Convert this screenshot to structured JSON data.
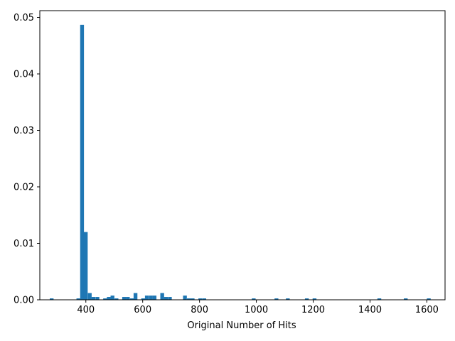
{
  "chart_data": {
    "type": "bar",
    "xlabel": "Original Number of Hits",
    "ylabel": "",
    "title": "",
    "xlim": [
      238,
      1664
    ],
    "ylim": [
      0,
      0.0512
    ],
    "bin_width": 13.4,
    "x_ticks": [
      {
        "value": 400,
        "label": "400"
      },
      {
        "value": 600,
        "label": "600"
      },
      {
        "value": 800,
        "label": "800"
      },
      {
        "value": 1000,
        "label": "1000"
      },
      {
        "value": 1200,
        "label": "1200"
      },
      {
        "value": 1400,
        "label": "1400"
      },
      {
        "value": 1600,
        "label": "1600"
      }
    ],
    "y_ticks": [
      {
        "value": 0,
        "label": "0.00"
      },
      {
        "value": 0.01,
        "label": "0.01"
      },
      {
        "value": 0.02,
        "label": "0.02"
      },
      {
        "value": 0.03,
        "label": "0.03"
      },
      {
        "value": 0.04,
        "label": "0.04"
      },
      {
        "value": 0.05,
        "label": "0.05"
      }
    ],
    "bars": [
      {
        "x": 273,
        "value": 0.00025
      },
      {
        "x": 367,
        "value": 0.00025
      },
      {
        "x": 380,
        "value": 0.0487
      },
      {
        "x": 393,
        "value": 0.012
      },
      {
        "x": 407,
        "value": 0.0012
      },
      {
        "x": 420,
        "value": 0.0005
      },
      {
        "x": 434,
        "value": 0.0005
      },
      {
        "x": 461,
        "value": 0.00025
      },
      {
        "x": 474,
        "value": 0.0005
      },
      {
        "x": 487,
        "value": 0.00075
      },
      {
        "x": 501,
        "value": 0.00025
      },
      {
        "x": 528,
        "value": 0.0005
      },
      {
        "x": 541,
        "value": 0.0005
      },
      {
        "x": 555,
        "value": 0.00025
      },
      {
        "x": 568,
        "value": 0.0012
      },
      {
        "x": 595,
        "value": 0.00025
      },
      {
        "x": 608,
        "value": 0.00075
      },
      {
        "x": 622,
        "value": 0.00075
      },
      {
        "x": 635,
        "value": 0.00075
      },
      {
        "x": 662,
        "value": 0.0012
      },
      {
        "x": 675,
        "value": 0.0005
      },
      {
        "x": 689,
        "value": 0.0005
      },
      {
        "x": 742,
        "value": 0.00075
      },
      {
        "x": 756,
        "value": 0.00025
      },
      {
        "x": 769,
        "value": 0.00025
      },
      {
        "x": 796,
        "value": 0.00025
      },
      {
        "x": 810,
        "value": 0.00025
      },
      {
        "x": 984,
        "value": 0.00025
      },
      {
        "x": 1064,
        "value": 0.00025
      },
      {
        "x": 1104,
        "value": 0.00025
      },
      {
        "x": 1171,
        "value": 0.00025
      },
      {
        "x": 1198,
        "value": 0.00025
      },
      {
        "x": 1426,
        "value": 0.00025
      },
      {
        "x": 1519,
        "value": 0.00025
      },
      {
        "x": 1600,
        "value": 0.00025
      }
    ],
    "colors": {
      "bar": "#1f77b4",
      "axes": "#000000",
      "background": "#ffffff"
    },
    "grid": false,
    "legend": "none"
  }
}
